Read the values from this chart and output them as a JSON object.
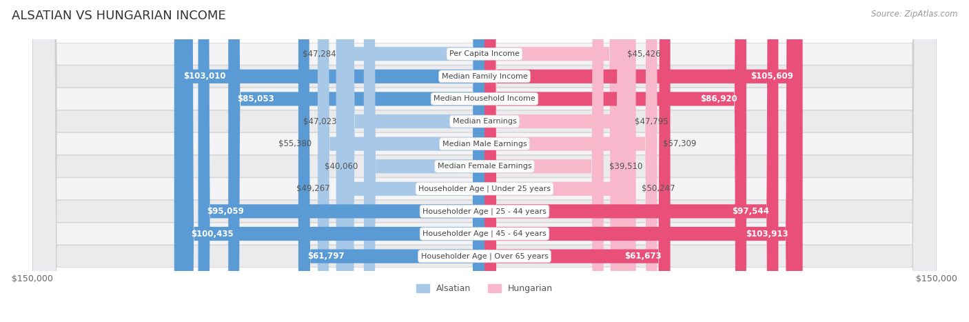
{
  "title": "ALSATIAN VS HUNGARIAN INCOME",
  "source": "Source: ZipAtlas.com",
  "categories": [
    "Per Capita Income",
    "Median Family Income",
    "Median Household Income",
    "Median Earnings",
    "Median Male Earnings",
    "Median Female Earnings",
    "Householder Age | Under 25 years",
    "Householder Age | 25 - 44 years",
    "Householder Age | 45 - 64 years",
    "Householder Age | Over 65 years"
  ],
  "alsatian_values": [
    47284,
    103010,
    85053,
    47023,
    55380,
    40060,
    49267,
    95059,
    100435,
    61797
  ],
  "hungarian_values": [
    45426,
    105609,
    86920,
    47795,
    57309,
    39510,
    50247,
    97544,
    103913,
    61673
  ],
  "alsatian_labels": [
    "$47,284",
    "$103,010",
    "$85,053",
    "$47,023",
    "$55,380",
    "$40,060",
    "$49,267",
    "$95,059",
    "$100,435",
    "$61,797"
  ],
  "hungarian_labels": [
    "$45,426",
    "$105,609",
    "$86,920",
    "$47,795",
    "$57,309",
    "$39,510",
    "$50,247",
    "$97,544",
    "$103,913",
    "$61,673"
  ],
  "alsatian_color_light": "#a8c8e8",
  "alsatian_color_dark": "#5b9bd5",
  "hungarian_color_light": "#f7b8cc",
  "hungarian_color_dark": "#e8507a",
  "threshold": 60000,
  "max_value": 150000,
  "bar_height": 0.62,
  "row_bg_odd": "#f4f4f6",
  "row_bg_even": "#ebebee",
  "background_color": "#ffffff",
  "title_fontsize": 13,
  "label_fontsize": 8.5,
  "cat_label_fontsize": 8.0,
  "axis_label_fontsize": 9,
  "legend_fontsize": 9
}
